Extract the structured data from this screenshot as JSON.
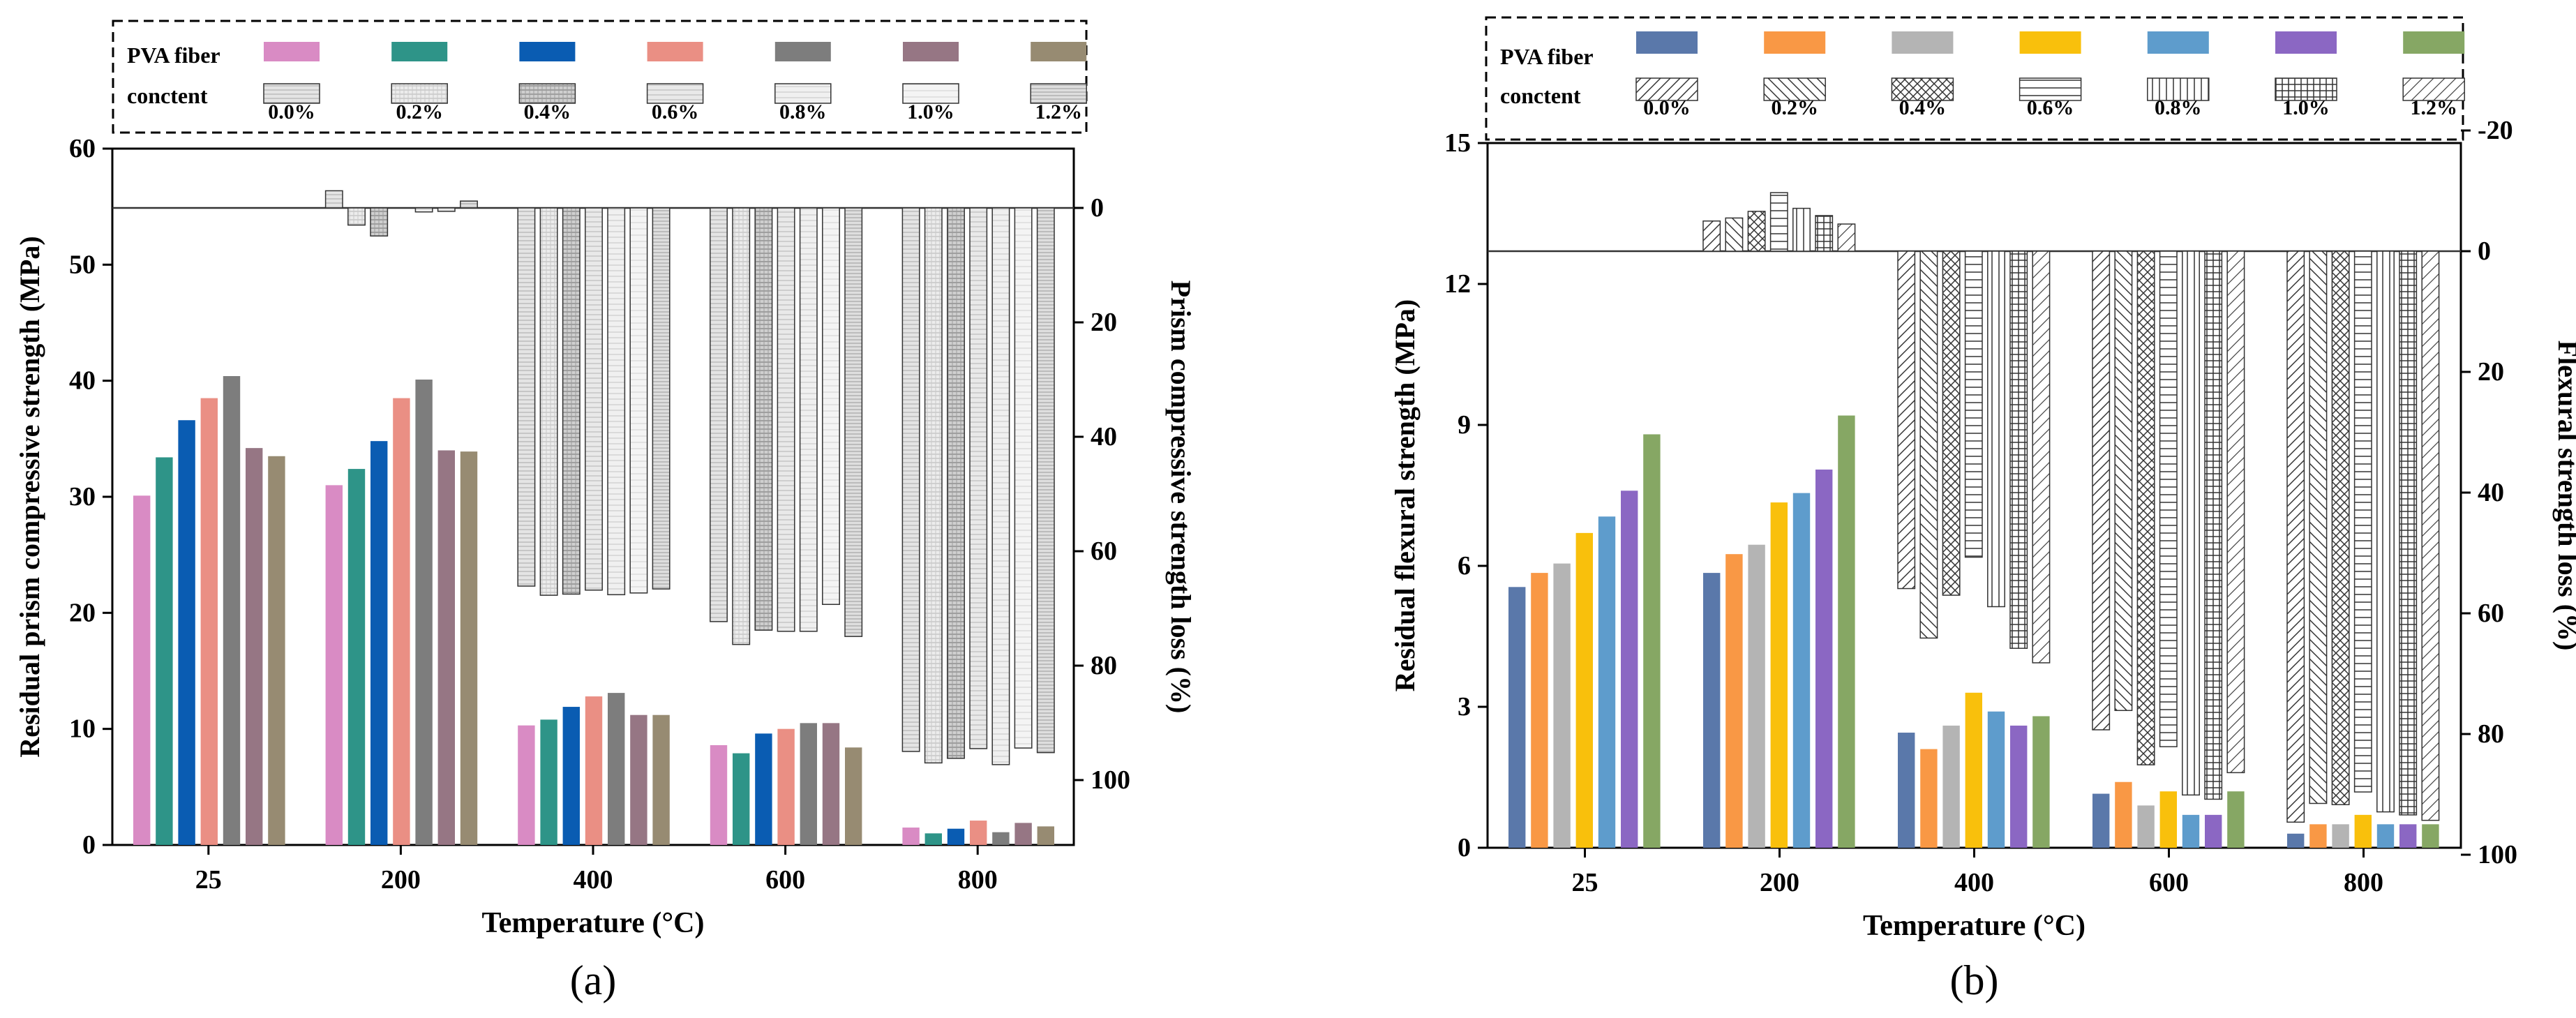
{
  "chart_data": [
    {
      "type": "bar",
      "panel_label": "(a)",
      "xlabel": "Temperature (°C)",
      "ylabel": "Residual prism compressive strength (MPa)",
      "ylabel_right": "Prism compressive strength loss (%)",
      "categories": [
        "25",
        "200",
        "400",
        "600",
        "800"
      ],
      "ylim": [
        0,
        60
      ],
      "yticks": [
        0,
        10,
        20,
        30,
        40,
        50,
        60
      ],
      "y2_ticks": [
        0,
        20,
        40,
        60,
        80,
        100
      ],
      "legend": {
        "title_line1": "PVA fiber",
        "title_line2": "conctent",
        "labels": [
          "0.0%",
          "0.2%",
          "0.4%",
          "0.6%",
          "0.8%",
          "1.0%",
          "1.2%"
        ],
        "colors": [
          "#d98bc4",
          "#2e9488",
          "#0a5cb2",
          "#ea8f84",
          "#7d7d7d",
          "#967684",
          "#978b72"
        ]
      },
      "series": [
        {
          "name": "0.0%",
          "values": [
            30.1,
            31.0,
            10.3,
            8.6,
            1.5
          ],
          "loss": [
            0.0,
            -3.0,
            66.1,
            72.3,
            95.0
          ]
        },
        {
          "name": "0.2%",
          "values": [
            33.4,
            32.4,
            10.8,
            7.9,
            1.0
          ],
          "loss": [
            0.0,
            3.0,
            67.7,
            76.3,
            97.0
          ]
        },
        {
          "name": "0.4%",
          "values": [
            36.6,
            34.8,
            11.9,
            9.6,
            1.4
          ],
          "loss": [
            0.0,
            4.9,
            67.5,
            73.8,
            96.2
          ]
        },
        {
          "name": "0.6%",
          "values": [
            38.5,
            38.5,
            12.8,
            10.0,
            2.1
          ],
          "loss": [
            0.0,
            0.0,
            66.8,
            74.0,
            94.5
          ]
        },
        {
          "name": "0.8%",
          "values": [
            40.4,
            40.1,
            13.1,
            10.5,
            1.1
          ],
          "loss": [
            0.0,
            0.7,
            67.6,
            74.0,
            97.3
          ]
        },
        {
          "name": "1.0%",
          "values": [
            34.2,
            34.0,
            11.2,
            10.5,
            1.9
          ],
          "loss": [
            0.0,
            0.6,
            67.3,
            69.3,
            94.4
          ]
        },
        {
          "name": "1.2%",
          "values": [
            33.5,
            33.9,
            11.2,
            8.4,
            1.6
          ],
          "loss": [
            0.0,
            -1.2,
            66.6,
            74.9,
            95.2
          ]
        }
      ]
    },
    {
      "type": "bar",
      "panel_label": "(b)",
      "xlabel": "Temperature (°C)",
      "ylabel": "Residual flexural strength (MPa)",
      "ylabel_right": "Flexural  strength loss (%)",
      "categories": [
        "25",
        "200",
        "400",
        "600",
        "800"
      ],
      "ylim": [
        0,
        15
      ],
      "yticks": [
        0,
        3,
        6,
        9,
        12,
        15
      ],
      "y2_ticks": [
        -20,
        0,
        20,
        40,
        60,
        80,
        100
      ],
      "legend": {
        "title_line1": "PVA fiber",
        "title_line2": "conctent",
        "labels": [
          "0.0%",
          "0.2%",
          "0.4%",
          "0.6%",
          "0.8%",
          "1.0%",
          "1.2%"
        ],
        "colors": [
          "#5a78aa",
          "#f99845",
          "#b4b4b4",
          "#f9c00c",
          "#5e9ccc",
          "#8b67c3",
          "#86a764"
        ]
      },
      "series": [
        {
          "name": "0.0%",
          "values": [
            5.55,
            5.85,
            2.45,
            1.15,
            0.3
          ],
          "loss": [
            0.0,
            -5.0,
            55.9,
            79.3,
            94.6
          ]
        },
        {
          "name": "0.2%",
          "values": [
            5.85,
            6.25,
            2.1,
            1.4,
            0.5
          ],
          "loss": [
            0.0,
            -5.5,
            64.1,
            76.1,
            91.5
          ]
        },
        {
          "name": "0.4%",
          "values": [
            6.05,
            6.45,
            2.6,
            0.9,
            0.5
          ],
          "loss": [
            0.0,
            -6.6,
            57.0,
            85.1,
            91.7
          ]
        },
        {
          "name": "0.6%",
          "values": [
            6.7,
            7.35,
            3.3,
            1.2,
            0.7
          ],
          "loss": [
            0.0,
            -9.7,
            50.7,
            82.1,
            89.6
          ]
        },
        {
          "name": "0.8%",
          "values": [
            7.05,
            7.55,
            2.9,
            0.7,
            0.5
          ],
          "loss": [
            0.0,
            -7.1,
            58.9,
            90.1,
            92.9
          ]
        },
        {
          "name": "1.0%",
          "values": [
            7.6,
            8.05,
            2.6,
            0.7,
            0.5
          ],
          "loss": [
            0.0,
            -5.9,
            65.8,
            90.8,
            93.4
          ]
        },
        {
          "name": "1.2%",
          "values": [
            8.8,
            9.2,
            2.8,
            1.2,
            0.5
          ],
          "loss": [
            0.0,
            -4.5,
            68.2,
            86.4,
            94.3
          ]
        }
      ]
    }
  ]
}
